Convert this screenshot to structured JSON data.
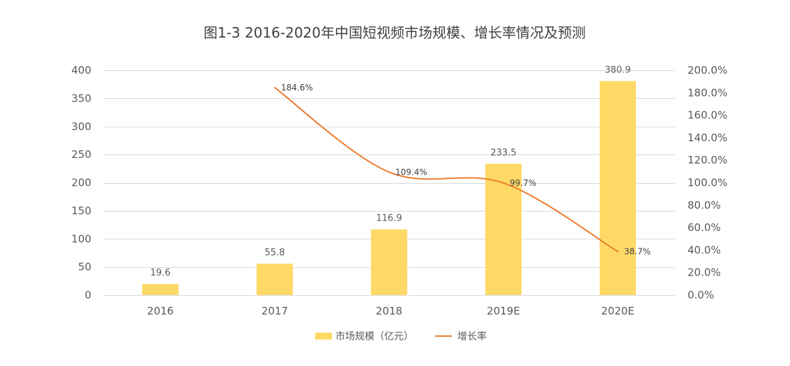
{
  "chart_data": {
    "type": "bar",
    "title": "图1-3 2016-2020年中国短视频市场规模、增长率情况及预测",
    "categories": [
      "2016",
      "2017",
      "2018",
      "2019E",
      "2020E"
    ],
    "series": [
      {
        "name": "市场规模（亿元）",
        "type": "bar",
        "y_axis": "left",
        "color": "#FFD966",
        "values": [
          19.6,
          55.8,
          116.9,
          233.5,
          380.9
        ],
        "labels": [
          "19.6",
          "55.8",
          "116.9",
          "233.5",
          "380.9"
        ]
      },
      {
        "name": "增长率",
        "type": "line",
        "y_axis": "right",
        "color": "#ED7D31",
        "values": [
          null,
          184.6,
          109.4,
          99.7,
          38.7
        ],
        "labels": [
          null,
          "184.6%",
          "109.4%",
          "99.7%",
          "38.7%"
        ]
      }
    ],
    "y_left": {
      "min": 0,
      "max": 400,
      "ticks": [
        0,
        50,
        100,
        150,
        200,
        250,
        300,
        350,
        400
      ],
      "tick_labels": [
        "0",
        "50",
        "100",
        "150",
        "200",
        "250",
        "300",
        "350",
        "400"
      ]
    },
    "y_right": {
      "min": 0,
      "max": 200,
      "ticks": [
        0,
        20,
        40,
        60,
        80,
        100,
        120,
        140,
        160,
        180,
        200
      ],
      "tick_labels": [
        "0.0%",
        "20.0%",
        "40.0%",
        "60.0%",
        "80.0%",
        "100.0%",
        "120.0%",
        "140.0%",
        "160.0%",
        "180.0%",
        "200.0%"
      ]
    },
    "grid": true,
    "legend": "bottom"
  }
}
